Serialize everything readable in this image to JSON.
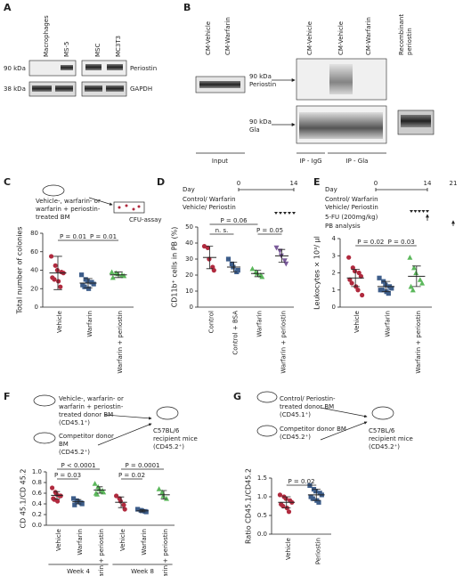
{
  "panel_a": {
    "label": "A",
    "lanes": [
      "Macrophages",
      "MS-5",
      "MSC",
      "MC3T3"
    ],
    "markers": [
      "90 kDa",
      "38 kDa"
    ],
    "proteins": [
      "Periostin",
      "GAPDH"
    ]
  },
  "panel_b": {
    "label": "B",
    "input_lanes": [
      "CM-Vehicle",
      "CM-Warfarin"
    ],
    "ip_lanes": [
      "CM-Vehicle",
      "CM-Vehicle",
      "CM-Warfarin"
    ],
    "recombinant": [
      "Recombinant",
      "periostin"
    ],
    "bands": [
      [
        "90 kDa",
        "Periostin"
      ],
      [
        "90 kDa",
        "Gla"
      ]
    ],
    "sections": [
      "Input",
      "IP - IgG",
      "IP - Gla"
    ]
  },
  "chart_data": [
    {
      "panel": "C",
      "type": "dot",
      "protocol": {
        "treatment": [
          "Vehicle-, warfarin- or",
          "warfarin + periostin-",
          "treated BM"
        ],
        "assay": "CFU-assay"
      },
      "ylabel": "Total number of colonies",
      "ylim": [
        0,
        80
      ],
      "yticks": [
        0,
        20,
        40,
        60,
        80
      ],
      "series": [
        {
          "name": "Vehicle",
          "color": "#b02a3e",
          "marker": "circle",
          "values": [
            55,
            45,
            40,
            38,
            37,
            32,
            30,
            28,
            22
          ],
          "mean": 37,
          "sd": 18
        },
        {
          "name": "Warfarin",
          "color": "#3d5d8a",
          "marker": "square",
          "values": [
            35,
            30,
            28,
            27,
            25,
            24,
            22,
            20
          ],
          "mean": 26,
          "sd": 5
        },
        {
          "name": "Warfarin + periostin",
          "color": "#5cb85c",
          "marker": "triangle",
          "values": [
            38,
            37,
            36,
            35,
            34,
            32
          ],
          "mean": 35,
          "sd": 3
        }
      ],
      "annotations": [
        {
          "label": "P = 0.01",
          "from": 0,
          "to": 1
        },
        {
          "label": "P = 0.01",
          "from": 1,
          "to": 2
        }
      ]
    },
    {
      "panel": "D",
      "type": "dot",
      "protocol": {
        "day": "Day",
        "days": [
          0,
          14
        ],
        "treatment": [
          "Control/ Warfarin",
          "Vehicle/ Periostin"
        ]
      },
      "ylabel": "CD11b⁺ cells in PB (%)",
      "ylim": [
        0,
        50
      ],
      "yticks": [
        0,
        10,
        20,
        30,
        40,
        50
      ],
      "series": [
        {
          "name": "Control",
          "color": "#b02a3e",
          "marker": "circle",
          "values": [
            38,
            37,
            30,
            25,
            23
          ],
          "mean": 31,
          "sd": 7
        },
        {
          "name": "Control + BSA",
          "color": "#3d5d8a",
          "marker": "square",
          "values": [
            30,
            27,
            25,
            22,
            23
          ],
          "mean": 25,
          "sd": 3
        },
        {
          "name": "Warfarin",
          "color": "#5cb85c",
          "marker": "triangle",
          "values": [
            24,
            22,
            21,
            20,
            19
          ],
          "mean": 21,
          "sd": 2
        },
        {
          "name": "Warfarin + periostin",
          "color": "#7a5a9a",
          "marker": "triangle-down",
          "values": [
            37,
            35,
            32,
            29,
            27
          ],
          "mean": 32,
          "sd": 4
        }
      ],
      "annotations": [
        {
          "label": "n. s.",
          "from": 0,
          "to": 1
        },
        {
          "label": "P = 0.06",
          "from": 0,
          "to": 2
        },
        {
          "label": "P = 0.05",
          "from": 2,
          "to": 3
        }
      ]
    },
    {
      "panel": "E",
      "type": "dot",
      "protocol": {
        "day": "Day",
        "days": [
          0,
          14,
          21
        ],
        "treatment": [
          "Control/ Warfarin",
          "Vehicle/ Periostin"
        ],
        "injection": "5-FU (200mg/kg)",
        "analysis": "PB analysis"
      },
      "ylabel": "Leukocytes × 10³/ µl",
      "ylim": [
        0,
        4
      ],
      "yticks": [
        0,
        1,
        2,
        3,
        4
      ],
      "series": [
        {
          "name": "Vehicle",
          "color": "#b02a3e",
          "marker": "circle",
          "values": [
            2.9,
            2.3,
            2.1,
            2.0,
            1.8,
            1.6,
            1.4,
            1.2,
            1.0,
            0.7
          ],
          "mean": 1.7,
          "sd": 0.5
        },
        {
          "name": "Warfarin",
          "color": "#3d5d8a",
          "marker": "square",
          "values": [
            1.7,
            1.5,
            1.3,
            1.2,
            1.1,
            1.0,
            1.0,
            0.9,
            0.8
          ],
          "mean": 1.2,
          "sd": 0.3
        },
        {
          "name": "Warfarin + periostin",
          "color": "#5cb85c",
          "marker": "triangle",
          "values": [
            2.9,
            2.3,
            2.0,
            1.6,
            1.4,
            1.2,
            1.0
          ],
          "mean": 1.8,
          "sd": 0.6
        }
      ],
      "annotations": [
        {
          "label": "P = 0.02",
          "from": 0,
          "to": 1
        },
        {
          "label": "P = 0.03",
          "from": 1,
          "to": 2
        }
      ]
    },
    {
      "panel": "F",
      "type": "dot",
      "protocol": {
        "donor": [
          "Vehicle-, warfarin- or",
          "warfarin + periostin-",
          "treated donor BM",
          "(CD45.1⁺)"
        ],
        "competitor": [
          "Competitor donor",
          "BM",
          "(CD45.2⁺)"
        ],
        "recipient": [
          "C57BL/6",
          "recipient mice",
          "(CD45.2⁺)"
        ]
      },
      "ylabel": "CD 45.1/CD 45.2",
      "ylim": [
        0,
        1
      ],
      "yticks": [
        {
          "value": 0,
          "label": "0.0"
        },
        0.2,
        0.4,
        0.6,
        0.8,
        {
          "value": 1,
          "label": "1.0"
        }
      ],
      "series": [
        {
          "name": "Vehicle",
          "color": "#b02a3e",
          "marker": "circle",
          "values": [
            0.7,
            0.62,
            0.58,
            0.55,
            0.55,
            0.5,
            0.48,
            0.45
          ],
          "mean": 0.56,
          "sd": 0.07
        },
        {
          "name": "Warfarin",
          "color": "#3d5d8a",
          "marker": "square",
          "values": [
            0.5,
            0.46,
            0.44,
            0.42,
            0.4,
            0.38
          ],
          "mean": 0.44,
          "sd": 0.04
        },
        {
          "name": "Warfarin + periostin",
          "color": "#5cb85c",
          "marker": "triangle",
          "values": [
            0.78,
            0.72,
            0.68,
            0.65,
            0.62,
            0.6,
            0.58
          ],
          "mean": 0.66,
          "sd": 0.06
        },
        {
          "name": "Vehicle",
          "color": "#b02a3e",
          "marker": "circle",
          "values": [
            0.55,
            0.5,
            0.45,
            0.38,
            0.3
          ],
          "mean": 0.43,
          "sd": 0.1
        },
        {
          "name": "Warfarin",
          "color": "#3d5d8a",
          "marker": "square",
          "values": [
            0.3,
            0.28,
            0.27,
            0.26,
            0.25
          ],
          "mean": 0.27,
          "sd": 0.02
        },
        {
          "name": "Warfarin + periostin",
          "color": "#5cb85c",
          "marker": "triangle",
          "values": [
            0.68,
            0.62,
            0.55,
            0.5
          ],
          "mean": 0.57,
          "sd": 0.08
        }
      ],
      "annotations": [
        {
          "label": "P = 0.03",
          "from": 0,
          "to": 1
        },
        {
          "label": "P < 0.0001",
          "from": 0,
          "to": 2
        },
        {
          "label": "P = 0.02",
          "from": 3,
          "to": 4
        },
        {
          "label": "P = 0.0001",
          "from": 3,
          "to": 5
        }
      ],
      "groups": [
        {
          "label": "Week 4",
          "from": 0,
          "to": 2
        },
        {
          "label": "Week 8",
          "from": 3,
          "to": 5
        }
      ]
    },
    {
      "panel": "G",
      "type": "dot",
      "protocol": {
        "donor": [
          "Control/ Periostin-",
          "treated donor BM",
          "(CD45.1⁺)"
        ],
        "competitor": [
          "Competitor donor BM",
          "(CD45.2⁺)"
        ],
        "recipient": [
          "C57BL/6",
          "recipient mice",
          "(CD45.2⁺)"
        ]
      },
      "ylabel": "Ratio CD45.1/CD45.2",
      "ylim": [
        0,
        1.5
      ],
      "yticks": [
        {
          "value": 0,
          "label": "0.0"
        },
        0.5,
        {
          "value": 1,
          "label": "1.0"
        },
        1.5
      ],
      "series": [
        {
          "name": "Vehicle",
          "color": "#b02a3e",
          "marker": "circle",
          "values": [
            1.05,
            1.0,
            0.95,
            0.9,
            0.85,
            0.8,
            0.75,
            0.7,
            0.6
          ],
          "mean": 0.85,
          "sd": 0.15
        },
        {
          "name": "Periostin",
          "color": "#3d5d8a",
          "marker": "square",
          "values": [
            1.3,
            1.2,
            1.15,
            1.1,
            1.05,
            1.0,
            0.95,
            0.9,
            0.85
          ],
          "mean": 1.05,
          "sd": 0.15
        }
      ],
      "annotations": [
        {
          "label": "P = 0.02",
          "from": 0,
          "to": 1
        }
      ]
    }
  ]
}
